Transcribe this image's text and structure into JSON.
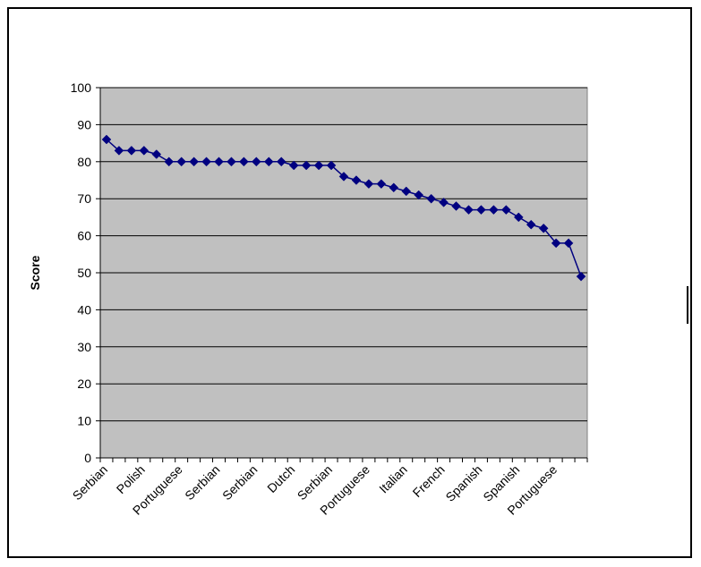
{
  "chart_data": {
    "type": "line",
    "title": "",
    "xlabel": "",
    "ylabel": "Score",
    "ylim": [
      0,
      100
    ],
    "yticks": [
      0,
      10,
      20,
      30,
      40,
      50,
      60,
      70,
      80,
      90,
      100
    ],
    "grid": true,
    "plot_background": "#c0c0c0",
    "series_color": "#000080",
    "marker": "diamond",
    "values": [
      86,
      83,
      83,
      83,
      82,
      80,
      80,
      80,
      80,
      80,
      80,
      80,
      80,
      80,
      80,
      79,
      79,
      79,
      79,
      76,
      75,
      74,
      74,
      73,
      72,
      71,
      70,
      69,
      68,
      67,
      67,
      67,
      67,
      65,
      63,
      62,
      58,
      58,
      49
    ],
    "tick_labels": [
      {
        "index": 0,
        "label": "Serbian"
      },
      {
        "index": 3,
        "label": "Polish"
      },
      {
        "index": 6,
        "label": "Portuguese"
      },
      {
        "index": 9,
        "label": "Serbian"
      },
      {
        "index": 12,
        "label": "Serbian"
      },
      {
        "index": 15,
        "label": "Dutch"
      },
      {
        "index": 18,
        "label": "Serbian"
      },
      {
        "index": 21,
        "label": "Portuguese"
      },
      {
        "index": 24,
        "label": "Italian"
      },
      {
        "index": 27,
        "label": "French"
      },
      {
        "index": 30,
        "label": "Spanish"
      },
      {
        "index": 33,
        "label": "Spanish"
      },
      {
        "index": 36,
        "label": "Portuguese"
      }
    ]
  }
}
